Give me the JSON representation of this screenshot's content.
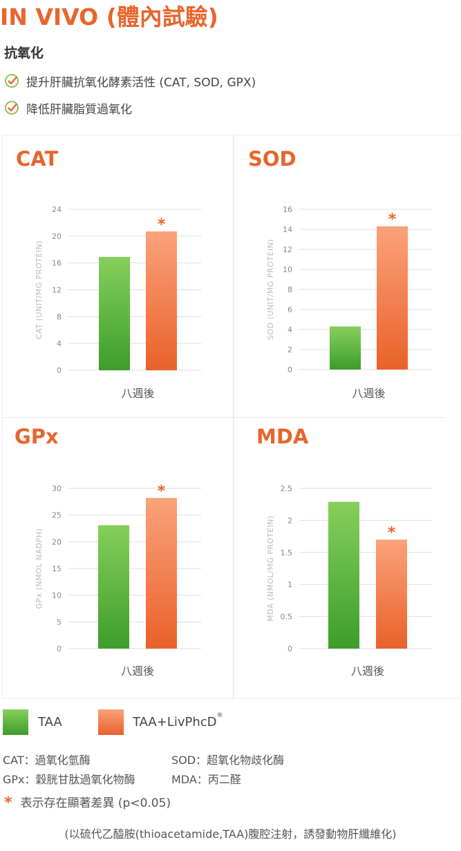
{
  "header": {
    "title": "IN VIVO (體內試驗)",
    "section": "抗氧化",
    "checks": [
      "提升肝臟抗氧化酵素活性 (CAT, SOD, GPX)",
      "降低肝臟脂質過氧化"
    ]
  },
  "colors": {
    "accent": "#e8652d",
    "green_top": "#86cf5c",
    "green_bottom": "#3d9d2b",
    "orange_top": "#fba27a",
    "orange_bottom": "#e9612a",
    "check": "#7ac143",
    "check_tick": "#e8652d"
  },
  "chart_data": [
    {
      "type": "bar",
      "title": "CAT",
      "ylabel": "CAT (UNIT/MG PROTEIN)",
      "categories": [
        "八週後"
      ],
      "ylim": [
        0,
        24
      ],
      "yticks": [
        0,
        4,
        8,
        12,
        16,
        20,
        24
      ],
      "series": [
        {
          "name": "TAA",
          "values": [
            16.9
          ],
          "significant": false
        },
        {
          "name": "TAA+LivPhcD",
          "values": [
            20.7
          ],
          "significant": true
        }
      ]
    },
    {
      "type": "bar",
      "title": "SOD",
      "ylabel": "SOD (UNIT/MG PROTEIN)",
      "categories": [
        "八週後"
      ],
      "ylim": [
        0,
        16
      ],
      "yticks": [
        0,
        2,
        4,
        6,
        8,
        10,
        12,
        14,
        16
      ],
      "series": [
        {
          "name": "TAA",
          "values": [
            4.3
          ],
          "significant": false
        },
        {
          "name": "TAA+LivPhcD",
          "values": [
            14.3
          ],
          "significant": true
        }
      ]
    },
    {
      "type": "bar",
      "title": "GPx",
      "ylabel": "GPx (NMOL NADPH)",
      "categories": [
        "八週後"
      ],
      "ylim": [
        0,
        30
      ],
      "yticks": [
        0,
        5,
        10,
        15,
        20,
        25,
        30
      ],
      "series": [
        {
          "name": "TAA",
          "values": [
            23.1
          ],
          "significant": false
        },
        {
          "name": "TAA+LivPhcD",
          "values": [
            28.2
          ],
          "significant": true
        }
      ]
    },
    {
      "type": "bar",
      "title": "MDA",
      "ylabel": "MDA (NMOL/MG PROTEIN)",
      "categories": [
        "八週後"
      ],
      "ylim": [
        0,
        2.5
      ],
      "yticks": [
        0,
        0.5,
        1,
        1.5,
        2,
        2.5
      ],
      "series": [
        {
          "name": "TAA",
          "values": [
            2.29
          ],
          "significant": false
        },
        {
          "name": "TAA+LivPhcD",
          "values": [
            1.7
          ],
          "significant": true
        }
      ]
    }
  ],
  "legend": {
    "items": [
      {
        "label": "TAA"
      },
      {
        "label": "TAA+LivPhcD",
        "mark": "®"
      }
    ]
  },
  "abbreviations": [
    "CAT：過氧化氫酶",
    "SOD：超氧化物歧化酶",
    "GPx：穀胱甘肽過氧化物酶",
    "MDA：丙二醛"
  ],
  "significance_note": {
    "star": "*",
    "text": "表示存在顯著差異 (p<0.05)"
  },
  "footnote": "(以硫代乙醯胺(thioacetamide,TAA)腹腔注射，誘發動物肝纖維化)"
}
